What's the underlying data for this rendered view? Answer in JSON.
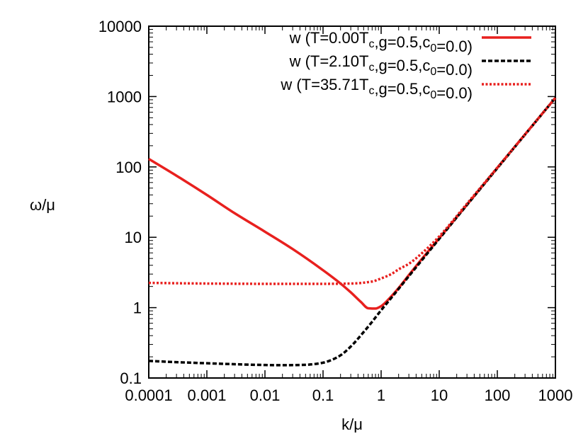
{
  "chart_data": {
    "type": "line",
    "title": "",
    "xlabel": "k/μ",
    "ylabel": "ω/μ",
    "xscale": "log",
    "yscale": "log",
    "xlim": [
      0.0001,
      1000
    ],
    "ylim": [
      0.1,
      10000
    ],
    "xticks": [
      {
        "value": 0.0001,
        "label": "0.0001"
      },
      {
        "value": 0.001,
        "label": "0.001"
      },
      {
        "value": 0.01,
        "label": "0.01"
      },
      {
        "value": 0.1,
        "label": "0.1"
      },
      {
        "value": 1,
        "label": "1"
      },
      {
        "value": 10,
        "label": "10"
      },
      {
        "value": 100,
        "label": "100"
      },
      {
        "value": 1000,
        "label": "1000"
      }
    ],
    "yticks": [
      {
        "value": 0.1,
        "label": "0.1"
      },
      {
        "value": 1,
        "label": "1"
      },
      {
        "value": 10,
        "label": "10"
      },
      {
        "value": 100,
        "label": "100"
      },
      {
        "value": 1000,
        "label": "1000"
      },
      {
        "value": 10000,
        "label": "10000"
      }
    ],
    "grid": false,
    "legend_position": "top-right",
    "series": [
      {
        "name": "w (T=0.00T_c,g=0.5,c_0=0.0)",
        "legend": {
          "pre": "w (T=0.00T",
          "sub1": "c",
          "mid": ",g=0.5,c",
          "sub2": "0",
          "post": "=0.0)"
        },
        "color": "#e8201e",
        "dash": "solid",
        "x": [
          0.0001,
          0.0003,
          0.001,
          0.003,
          0.01,
          0.03,
          0.1,
          0.2,
          0.3,
          0.45,
          0.6,
          0.8,
          1.0,
          1.5,
          2,
          3,
          5,
          10,
          30,
          100,
          300,
          1000
        ],
        "y": [
          130,
          75,
          40,
          22,
          12,
          6.8,
          3.4,
          2.2,
          1.65,
          1.2,
          0.98,
          0.97,
          1.05,
          1.45,
          1.9,
          2.9,
          4.9,
          9.7,
          29,
          97,
          290,
          960
        ]
      },
      {
        "name": "w (T=2.10T_c,g=0.5,c_0=0.0)",
        "legend": {
          "pre": "w (T=2.10T",
          "sub1": "c",
          "mid": ",g=0.5,c",
          "sub2": "0",
          "post": "=0.0)"
        },
        "color": "#000000",
        "dash": "dashed",
        "x": [
          0.0001,
          0.0003,
          0.001,
          0.003,
          0.01,
          0.02,
          0.05,
          0.1,
          0.15,
          0.2,
          0.3,
          0.5,
          0.7,
          1,
          1.5,
          2,
          3,
          5,
          10,
          30,
          100,
          300,
          1000
        ],
        "y": [
          0.175,
          0.168,
          0.162,
          0.157,
          0.153,
          0.152,
          0.154,
          0.165,
          0.185,
          0.21,
          0.28,
          0.45,
          0.63,
          0.92,
          1.38,
          1.85,
          2.8,
          4.7,
          9.5,
          28.8,
          96,
          288,
          960
        ]
      },
      {
        "name": "w (T=35.71T_c,g=0.5,c_0=0.0)",
        "legend": {
          "pre": "w (T=35.71T",
          "sub1": "c",
          "mid": ",g=0.5,c",
          "sub2": "0",
          "post": "=0.0)"
        },
        "color": "#e8201e",
        "dash": "dotted",
        "x": [
          0.0001,
          0.001,
          0.01,
          0.1,
          0.3,
          0.7,
          1,
          1.5,
          2,
          3,
          5,
          10,
          30,
          100,
          300,
          1000
        ],
        "y": [
          2.25,
          2.2,
          2.18,
          2.18,
          2.2,
          2.35,
          2.6,
          3.0,
          3.5,
          4.2,
          5.9,
          10.3,
          30,
          98,
          290,
          960
        ]
      }
    ]
  }
}
